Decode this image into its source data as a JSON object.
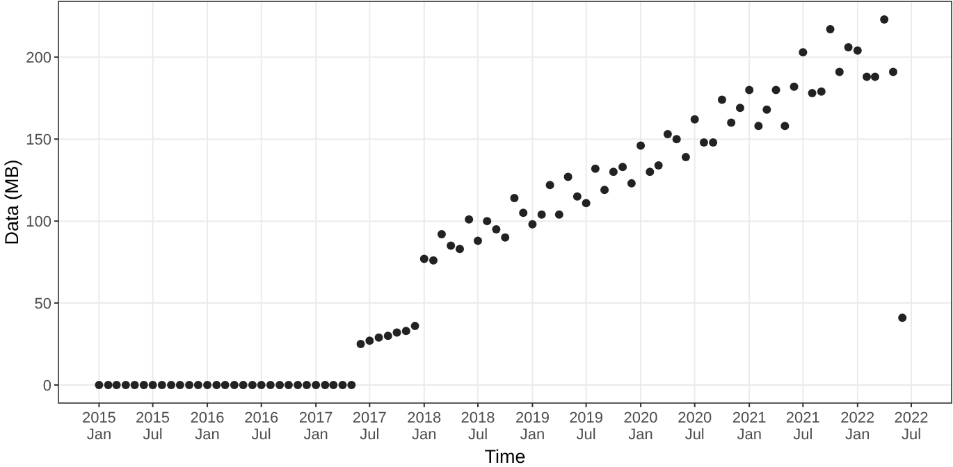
{
  "chart_data": {
    "type": "scatter",
    "xlabel": "Time",
    "ylabel": "Data (MB)",
    "x": [
      "2015-01",
      "2015-02",
      "2015-03",
      "2015-04",
      "2015-05",
      "2015-06",
      "2015-07",
      "2015-08",
      "2015-09",
      "2015-10",
      "2015-11",
      "2015-12",
      "2016-01",
      "2016-02",
      "2016-03",
      "2016-04",
      "2016-05",
      "2016-06",
      "2016-07",
      "2016-08",
      "2016-09",
      "2016-10",
      "2016-11",
      "2016-12",
      "2017-01",
      "2017-02",
      "2017-03",
      "2017-04",
      "2017-05",
      "2017-06",
      "2017-07",
      "2017-08",
      "2017-09",
      "2017-10",
      "2017-11",
      "2017-12",
      "2018-01",
      "2018-02",
      "2018-03",
      "2018-04",
      "2018-05",
      "2018-06",
      "2018-07",
      "2018-08",
      "2018-09",
      "2018-10",
      "2018-11",
      "2018-12",
      "2019-01",
      "2019-02",
      "2019-03",
      "2019-04",
      "2019-05",
      "2019-06",
      "2019-07",
      "2019-08",
      "2019-09",
      "2019-10",
      "2019-11",
      "2019-12",
      "2020-01",
      "2020-02",
      "2020-03",
      "2020-04",
      "2020-05",
      "2020-06",
      "2020-07",
      "2020-08",
      "2020-09",
      "2020-10",
      "2020-11",
      "2020-12",
      "2021-01",
      "2021-02",
      "2021-03",
      "2021-04",
      "2021-05",
      "2021-06",
      "2021-07",
      "2021-08",
      "2021-09",
      "2021-10",
      "2021-11",
      "2021-12",
      "2022-01",
      "2022-02",
      "2022-03",
      "2022-04",
      "2022-05",
      "2022-06"
    ],
    "series": [
      {
        "color": "#222222",
        "values": [
          0,
          0,
          0,
          0,
          0,
          0,
          0,
          0,
          0,
          0,
          0,
          0,
          0,
          0,
          0,
          0,
          0,
          0,
          0,
          0,
          0,
          0,
          0,
          0,
          0,
          0,
          0,
          0,
          0,
          25,
          27,
          29,
          30,
          32,
          33,
          36,
          77,
          76,
          92,
          85,
          83,
          101,
          88,
          100,
          95,
          90,
          114,
          105,
          98,
          104,
          122,
          104,
          127,
          115,
          111,
          132,
          119,
          130,
          133,
          123,
          146,
          130,
          134,
          153,
          150,
          139,
          162,
          148,
          148,
          174,
          160,
          169,
          180,
          158,
          168,
          180,
          158,
          182,
          203,
          178,
          179,
          217,
          191,
          206,
          204,
          188,
          188,
          223,
          191,
          41
        ]
      }
    ],
    "xlim": [
      "2014-08-17",
      "2022-11-14"
    ],
    "xticks": [
      {
        "value": "2015-01",
        "label": "2015\nJan"
      },
      {
        "value": "2015-07",
        "label": "2015\nJul"
      },
      {
        "value": "2016-01",
        "label": "2016\nJan"
      },
      {
        "value": "2016-07",
        "label": "2016\nJul"
      },
      {
        "value": "2017-01",
        "label": "2017\nJan"
      },
      {
        "value": "2017-07",
        "label": "2017\nJul"
      },
      {
        "value": "2018-01",
        "label": "2018\nJan"
      },
      {
        "value": "2018-07",
        "label": "2018\nJul"
      },
      {
        "value": "2019-01",
        "label": "2019\nJan"
      },
      {
        "value": "2019-07",
        "label": "2019\nJul"
      },
      {
        "value": "2020-01",
        "label": "2020\nJan"
      },
      {
        "value": "2020-07",
        "label": "2020\nJul"
      },
      {
        "value": "2021-01",
        "label": "2021\nJan"
      },
      {
        "value": "2021-07",
        "label": "2021\nJul"
      },
      {
        "value": "2022-01",
        "label": "2022\nJan"
      },
      {
        "value": "2022-07",
        "label": "2022\nJul"
      }
    ],
    "ylim": [
      -11,
      234
    ],
    "yticks": [
      0,
      50,
      100,
      150,
      200
    ],
    "grid": true,
    "marker": "circle"
  }
}
